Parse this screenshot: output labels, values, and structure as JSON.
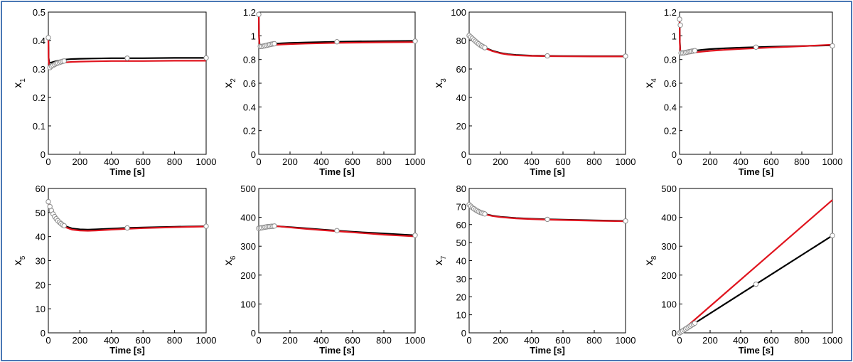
{
  "colors": {
    "model_line": "#000000",
    "compare_line": "#e0141e",
    "marker_fill": "#ffffff",
    "marker_stroke": "#8c8c8c",
    "frame": "#4a78b5"
  },
  "chart_data": [
    {
      "type": "line",
      "panel": "x1",
      "xlabel": "Time [s]",
      "ylabel_base": "x",
      "ylabel_sub": "1",
      "xlim": [
        0,
        1000
      ],
      "ylim": [
        0,
        0.5
      ],
      "xticks": [
        "0",
        "200",
        "400",
        "600",
        "800",
        "1000"
      ],
      "yticks": [
        "0",
        "0.1",
        "0.2",
        "0.3",
        "0.4",
        "0.5"
      ],
      "series": [
        {
          "color_key": "model_line",
          "x": [
            0,
            2,
            5,
            10,
            20,
            40,
            60,
            80,
            100,
            150,
            200,
            300,
            400,
            500,
            600,
            800,
            1000
          ],
          "y": [
            0.41,
            0.34,
            0.325,
            0.322,
            0.323,
            0.326,
            0.329,
            0.331,
            0.333,
            0.335,
            0.336,
            0.337,
            0.338,
            0.338,
            0.338,
            0.339,
            0.339
          ]
        },
        {
          "color_key": "compare_line",
          "x": [
            0,
            2,
            5,
            10,
            20,
            40,
            60,
            80,
            100,
            150,
            200,
            300,
            400,
            500,
            600,
            800,
            1000
          ],
          "y": [
            0.41,
            0.33,
            0.315,
            0.312,
            0.313,
            0.316,
            0.319,
            0.321,
            0.323,
            0.325,
            0.326,
            0.327,
            0.328,
            0.328,
            0.328,
            0.329,
            0.329
          ]
        }
      ],
      "markers": {
        "x": [
          0,
          10,
          20,
          30,
          40,
          50,
          60,
          70,
          80,
          90,
          100,
          500,
          1000
        ],
        "y": [
          0.41,
          0.305,
          0.31,
          0.313,
          0.316,
          0.319,
          0.321,
          0.323,
          0.325,
          0.327,
          0.328,
          0.338,
          0.339
        ]
      }
    },
    {
      "type": "line",
      "panel": "x2",
      "xlabel": "Time [s]",
      "ylabel_base": "x",
      "ylabel_sub": "2",
      "xlim": [
        0,
        1000
      ],
      "ylim": [
        0,
        1.2
      ],
      "xticks": [
        "0",
        "200",
        "400",
        "600",
        "800",
        "1000"
      ],
      "yticks": [
        "0",
        "0.2",
        "0.4",
        "0.6",
        "0.8",
        "1",
        "1.2"
      ],
      "series": [
        {
          "color_key": "model_line",
          "x": [
            0,
            2,
            5,
            10,
            20,
            40,
            60,
            80,
            100,
            150,
            200,
            300,
            400,
            500,
            600,
            800,
            1000
          ],
          "y": [
            1.18,
            1.0,
            0.93,
            0.915,
            0.915,
            0.92,
            0.925,
            0.93,
            0.933,
            0.937,
            0.94,
            0.944,
            0.947,
            0.95,
            0.952,
            0.955,
            0.957
          ]
        },
        {
          "color_key": "compare_line",
          "x": [
            0,
            2,
            5,
            10,
            20,
            40,
            60,
            80,
            100,
            150,
            200,
            300,
            400,
            500,
            600,
            800,
            1000
          ],
          "y": [
            1.18,
            0.98,
            0.915,
            0.905,
            0.905,
            0.91,
            0.915,
            0.92,
            0.923,
            0.927,
            0.93,
            0.934,
            0.937,
            0.94,
            0.942,
            0.945,
            0.947
          ]
        }
      ],
      "markers": {
        "x": [
          0,
          10,
          20,
          30,
          40,
          50,
          60,
          70,
          80,
          90,
          100,
          500,
          1000
        ],
        "y": [
          1.18,
          0.91,
          0.91,
          0.913,
          0.916,
          0.92,
          0.923,
          0.926,
          0.929,
          0.931,
          0.933,
          0.95,
          0.955
        ]
      }
    },
    {
      "type": "line",
      "panel": "x3",
      "xlabel": "Time [s]",
      "ylabel_base": "x",
      "ylabel_sub": "3",
      "xlim": [
        0,
        1000
      ],
      "ylim": [
        0,
        100
      ],
      "xticks": [
        "0",
        "200",
        "400",
        "600",
        "800",
        "1000"
      ],
      "yticks": [
        "0",
        "20",
        "40",
        "60",
        "80",
        "100"
      ],
      "series": [
        {
          "color_key": "model_line",
          "x": [
            0,
            10,
            20,
            40,
            60,
            80,
            100,
            150,
            200,
            250,
            300,
            400,
            500,
            600,
            800,
            1000
          ],
          "y": [
            83.5,
            82.5,
            81.5,
            79.5,
            77.7,
            76.2,
            75.0,
            72.8,
            71.3,
            70.4,
            69.9,
            69.4,
            69.2,
            69.1,
            69.0,
            69.0
          ]
        },
        {
          "color_key": "compare_line",
          "x": [
            0,
            10,
            20,
            40,
            60,
            80,
            100,
            150,
            200,
            250,
            300,
            400,
            500,
            600,
            800,
            1000
          ],
          "y": [
            83.5,
            82.4,
            81.3,
            79.2,
            77.4,
            75.9,
            74.7,
            72.5,
            71.0,
            70.1,
            69.6,
            69.2,
            69.0,
            68.9,
            68.8,
            68.8
          ]
        }
      ],
      "markers": {
        "x": [
          0,
          10,
          20,
          30,
          40,
          50,
          60,
          70,
          80,
          90,
          100,
          500,
          1000
        ],
        "y": [
          83.5,
          82.5,
          81.5,
          80.5,
          79.5,
          78.6,
          77.7,
          76.9,
          76.2,
          75.6,
          75.0,
          69.2,
          69.0
        ]
      }
    },
    {
      "type": "line",
      "panel": "x4",
      "xlabel": "Time [s]",
      "ylabel_base": "x",
      "ylabel_sub": "4",
      "xlim": [
        0,
        1000
      ],
      "ylim": [
        0,
        1.2
      ],
      "xticks": [
        "0",
        "200",
        "400",
        "600",
        "800",
        "1000"
      ],
      "yticks": [
        "0",
        "0.2",
        "0.4",
        "0.6",
        "0.8",
        "1",
        "1.2"
      ],
      "series": [
        {
          "color_key": "model_line",
          "x": [
            0,
            2,
            5,
            10,
            20,
            40,
            60,
            80,
            100,
            150,
            200,
            300,
            400,
            500,
            600,
            800,
            1000
          ],
          "y": [
            1.14,
            0.95,
            0.87,
            0.855,
            0.855,
            0.86,
            0.865,
            0.87,
            0.875,
            0.882,
            0.888,
            0.895,
            0.9,
            0.904,
            0.908,
            0.914,
            0.92
          ]
        },
        {
          "color_key": "compare_line",
          "x": [
            0,
            2,
            5,
            10,
            20,
            40,
            60,
            80,
            100,
            150,
            200,
            300,
            400,
            500,
            600,
            800,
            1000
          ],
          "y": [
            1.14,
            0.93,
            0.855,
            0.842,
            0.842,
            0.846,
            0.85,
            0.855,
            0.86,
            0.867,
            0.873,
            0.882,
            0.889,
            0.895,
            0.901,
            0.912,
            0.925
          ]
        }
      ],
      "markers": {
        "x": [
          0,
          5,
          10,
          20,
          30,
          40,
          50,
          60,
          70,
          80,
          90,
          100,
          500,
          1000
        ],
        "y": [
          1.14,
          1.09,
          0.855,
          0.855,
          0.857,
          0.859,
          0.862,
          0.865,
          0.867,
          0.87,
          0.872,
          0.875,
          0.904,
          0.915
        ]
      }
    },
    {
      "type": "line",
      "panel": "x5",
      "xlabel": "Time [s]",
      "ylabel_base": "x",
      "ylabel_sub": "5",
      "xlim": [
        0,
        1000
      ],
      "ylim": [
        0,
        60
      ],
      "xticks": [
        "0",
        "200",
        "400",
        "600",
        "800",
        "1000"
      ],
      "yticks": [
        "0",
        "10",
        "20",
        "30",
        "40",
        "50",
        "60"
      ],
      "series": [
        {
          "color_key": "model_line",
          "x": [
            0,
            10,
            20,
            40,
            60,
            80,
            100,
            150,
            200,
            250,
            300,
            400,
            500,
            600,
            800,
            1000
          ],
          "y": [
            54.5,
            52.5,
            50.8,
            48.3,
            46.6,
            45.4,
            44.5,
            43.4,
            43.0,
            42.9,
            43.0,
            43.3,
            43.6,
            43.8,
            44.1,
            44.3
          ]
        },
        {
          "color_key": "compare_line",
          "x": [
            0,
            10,
            20,
            40,
            60,
            80,
            100,
            150,
            200,
            250,
            300,
            400,
            500,
            600,
            800,
            1000
          ],
          "y": [
            54.5,
            52.4,
            50.6,
            48.0,
            46.3,
            45.0,
            44.1,
            42.9,
            42.5,
            42.4,
            42.5,
            42.9,
            43.2,
            43.5,
            43.9,
            44.2
          ]
        }
      ],
      "markers": {
        "x": [
          0,
          10,
          20,
          30,
          40,
          50,
          60,
          70,
          80,
          90,
          100,
          500,
          1000
        ],
        "y": [
          54.5,
          52.5,
          50.8,
          49.4,
          48.3,
          47.4,
          46.6,
          46.0,
          45.4,
          44.9,
          44.5,
          43.6,
          44.3
        ]
      }
    },
    {
      "type": "line",
      "panel": "x6",
      "xlabel": "Time [s]",
      "ylabel_base": "x",
      "ylabel_sub": "6",
      "xlim": [
        0,
        1000
      ],
      "ylim": [
        0,
        500
      ],
      "xticks": [
        "0",
        "200",
        "400",
        "600",
        "800",
        "1000"
      ],
      "yticks": [
        "0",
        "100",
        "200",
        "300",
        "400",
        "500"
      ],
      "series": [
        {
          "color_key": "model_line",
          "x": [
            0,
            20,
            40,
            60,
            80,
            100,
            200,
            300,
            400,
            500,
            600,
            700,
            800,
            900,
            1000
          ],
          "y": [
            362,
            365,
            367,
            368,
            369,
            370,
            366,
            362,
            358,
            354,
            350,
            347,
            344,
            341,
            338
          ]
        },
        {
          "color_key": "compare_line",
          "x": [
            0,
            20,
            40,
            60,
            80,
            100,
            200,
            300,
            400,
            500,
            600,
            700,
            800,
            900,
            1000
          ],
          "y": [
            362,
            365,
            367,
            368,
            369,
            370,
            365,
            360,
            356,
            352,
            348,
            344,
            340,
            337,
            334
          ]
        }
      ],
      "markers": {
        "x": [
          0,
          10,
          20,
          30,
          40,
          50,
          60,
          70,
          80,
          90,
          100,
          500,
          1000
        ],
        "y": [
          362,
          363,
          364,
          365,
          366,
          367,
          368,
          368,
          369,
          369,
          370,
          354,
          338
        ]
      }
    },
    {
      "type": "line",
      "panel": "x7",
      "xlabel": "Time [s]",
      "ylabel_base": "x",
      "ylabel_sub": "7",
      "xlim": [
        0,
        1000
      ],
      "ylim": [
        0,
        80
      ],
      "xticks": [
        "0",
        "200",
        "400",
        "600",
        "800",
        "1000"
      ],
      "yticks": [
        "0",
        "10",
        "20",
        "30",
        "40",
        "50",
        "60",
        "70",
        "80"
      ],
      "series": [
        {
          "color_key": "model_line",
          "x": [
            0,
            10,
            20,
            40,
            60,
            80,
            100,
            150,
            200,
            300,
            400,
            500,
            600,
            800,
            1000
          ],
          "y": [
            71.0,
            70.2,
            69.4,
            68.2,
            67.2,
            66.5,
            65.9,
            64.9,
            64.3,
            63.6,
            63.2,
            62.9,
            62.7,
            62.3,
            62.0
          ]
        },
        {
          "color_key": "compare_line",
          "x": [
            0,
            10,
            20,
            40,
            60,
            80,
            100,
            150,
            200,
            300,
            400,
            500,
            600,
            800,
            1000
          ],
          "y": [
            71.0,
            70.1,
            69.3,
            68.0,
            67.0,
            66.3,
            65.7,
            64.7,
            64.1,
            63.4,
            63.0,
            62.7,
            62.5,
            62.1,
            61.8
          ]
        }
      ],
      "markers": {
        "x": [
          0,
          10,
          20,
          30,
          40,
          50,
          60,
          70,
          80,
          90,
          100,
          500,
          1000
        ],
        "y": [
          71.0,
          70.2,
          69.4,
          68.8,
          68.2,
          67.7,
          67.2,
          66.8,
          66.5,
          66.2,
          65.9,
          62.9,
          62.0
        ]
      }
    },
    {
      "type": "line",
      "panel": "x8",
      "xlabel": "Time [s]",
      "ylabel_base": "x",
      "ylabel_sub": "8",
      "xlim": [
        0,
        1000
      ],
      "ylim": [
        0,
        500
      ],
      "xticks": [
        "0",
        "200",
        "400",
        "600",
        "800",
        "1000"
      ],
      "yticks": [
        "0",
        "100",
        "200",
        "300",
        "400",
        "500"
      ],
      "series": [
        {
          "color_key": "compare_line",
          "x": [
            0,
            1000
          ],
          "y": [
            0,
            460
          ]
        },
        {
          "color_key": "model_line",
          "x": [
            0,
            1000
          ],
          "y": [
            0,
            337
          ]
        }
      ],
      "markers": {
        "x": [
          0,
          10,
          20,
          30,
          40,
          50,
          60,
          70,
          80,
          90,
          100,
          500,
          1000
        ],
        "y": [
          0,
          3.4,
          6.7,
          10.1,
          13.5,
          16.9,
          20.2,
          23.6,
          27.0,
          30.3,
          33.7,
          168.5,
          337
        ]
      }
    }
  ]
}
